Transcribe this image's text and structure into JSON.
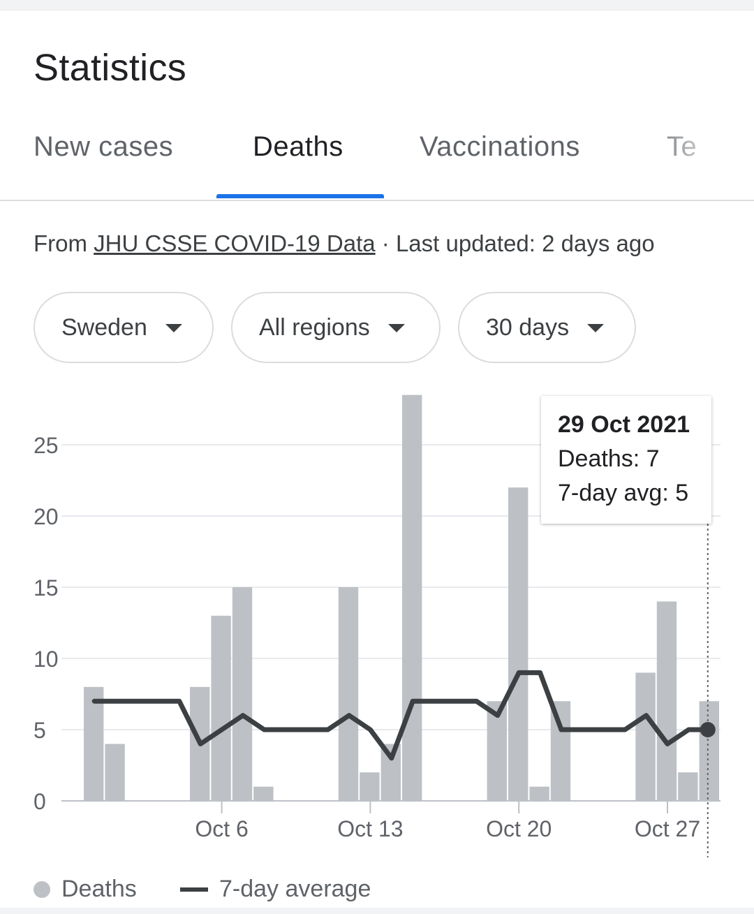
{
  "header": {
    "title": "Statistics"
  },
  "tabs": [
    {
      "label": "New cases",
      "active": false
    },
    {
      "label": "Deaths",
      "active": true
    },
    {
      "label": "Vaccinations",
      "active": false
    },
    {
      "label": "Te",
      "active": false
    }
  ],
  "source": {
    "prefix": "From ",
    "link": "JHU CSSE COVID-19 Data",
    "suffix": " · Last updated: 2 days ago"
  },
  "filters": {
    "country": "Sweden",
    "region": "All regions",
    "period": "30 days"
  },
  "tooltip": {
    "date": "29 Oct 2021",
    "deaths": "Deaths: 7",
    "avg": "7-day avg: 5"
  },
  "legend": {
    "deaths": "Deaths",
    "avg": "7-day average"
  },
  "colors": {
    "accent": "#1a73e8",
    "bar": "#bdc1c6",
    "line": "#3c4043"
  },
  "chart_data": {
    "type": "bar",
    "x": [
      "Sep 30",
      "Oct 1",
      "Oct 2",
      "Oct 3",
      "Oct 4",
      "Oct 5",
      "Oct 6",
      "Oct 7",
      "Oct 8",
      "Oct 9",
      "Oct 10",
      "Oct 11",
      "Oct 12",
      "Oct 13",
      "Oct 14",
      "Oct 15",
      "Oct 16",
      "Oct 17",
      "Oct 18",
      "Oct 19",
      "Oct 20",
      "Oct 21",
      "Oct 22",
      "Oct 23",
      "Oct 24",
      "Oct 25",
      "Oct 26",
      "Oct 27",
      "Oct 28",
      "Oct 29"
    ],
    "series": [
      {
        "name": "Deaths",
        "type": "bar",
        "values": [
          8,
          4,
          0,
          0,
          0,
          8,
          13,
          15,
          1,
          0,
          0,
          0,
          15,
          2,
          4,
          28.5,
          0,
          0,
          0,
          7,
          22,
          1,
          7,
          0,
          0,
          0,
          9,
          14,
          2,
          7
        ]
      },
      {
        "name": "7-day average",
        "type": "line",
        "values": [
          7,
          7,
          7,
          7,
          7,
          4,
          5,
          6,
          5,
          5,
          5,
          5,
          6,
          5,
          3,
          7,
          7,
          7,
          7,
          6,
          9,
          9,
          5,
          5,
          5,
          5,
          6,
          4,
          5,
          5
        ]
      }
    ],
    "xticks": [
      {
        "index": 6,
        "label": "Oct 6"
      },
      {
        "index": 13,
        "label": "Oct 13"
      },
      {
        "index": 20,
        "label": "Oct 20"
      },
      {
        "index": 27,
        "label": "Oct 27"
      }
    ],
    "yticks": [
      0,
      5,
      10,
      15,
      20,
      25
    ],
    "ylim": [
      0,
      28.5
    ],
    "grid": true,
    "selected_index": 29
  }
}
